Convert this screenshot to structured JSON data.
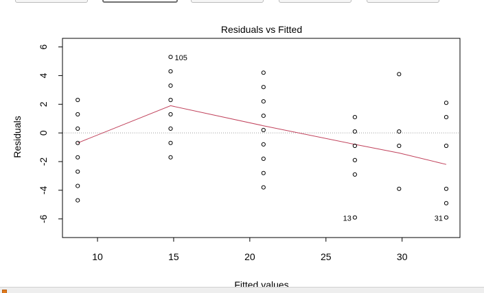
{
  "toolbar": {
    "buttons": [
      "",
      "",
      "",
      "",
      ""
    ],
    "active_index": 1
  },
  "status": {
    "text": ""
  },
  "chart_data": {
    "type": "scatter",
    "title": "Residuals vs Fitted",
    "xlabel": "Fitted values",
    "ylabel": "Residuals",
    "xlim": [
      7.7,
      33.8
    ],
    "ylim": [
      -7.3,
      6.6
    ],
    "xticks": [
      10,
      15,
      20,
      25,
      30
    ],
    "yticks": [
      -6,
      -4,
      -2,
      0,
      2,
      4,
      6
    ],
    "reference_line_y": 0,
    "colors": {
      "points": "#000000",
      "smooth": "#c0405a",
      "zero_line": "#9a9a9a"
    },
    "points": [
      {
        "x": 8.7,
        "y": 2.3
      },
      {
        "x": 8.7,
        "y": 1.3
      },
      {
        "x": 8.7,
        "y": 0.3
      },
      {
        "x": 8.7,
        "y": -0.7
      },
      {
        "x": 8.7,
        "y": -1.7
      },
      {
        "x": 8.7,
        "y": -2.7
      },
      {
        "x": 8.7,
        "y": -3.7
      },
      {
        "x": 8.7,
        "y": -4.7
      },
      {
        "x": 14.8,
        "y": 5.3,
        "label": "105"
      },
      {
        "x": 14.8,
        "y": 4.3
      },
      {
        "x": 14.8,
        "y": 3.3
      },
      {
        "x": 14.8,
        "y": 2.3
      },
      {
        "x": 14.8,
        "y": 1.3
      },
      {
        "x": 14.8,
        "y": 0.3
      },
      {
        "x": 14.8,
        "y": -0.7
      },
      {
        "x": 14.8,
        "y": -1.7
      },
      {
        "x": 20.9,
        "y": 4.2
      },
      {
        "x": 20.9,
        "y": 3.2
      },
      {
        "x": 20.9,
        "y": 2.2
      },
      {
        "x": 20.9,
        "y": 1.2
      },
      {
        "x": 20.9,
        "y": 0.2
      },
      {
        "x": 20.9,
        "y": -0.8
      },
      {
        "x": 20.9,
        "y": -1.8
      },
      {
        "x": 20.9,
        "y": -2.8
      },
      {
        "x": 20.9,
        "y": -3.8
      },
      {
        "x": 26.9,
        "y": 1.1
      },
      {
        "x": 26.9,
        "y": 0.1
      },
      {
        "x": 26.9,
        "y": -0.9
      },
      {
        "x": 26.9,
        "y": -1.9
      },
      {
        "x": 26.9,
        "y": -2.9
      },
      {
        "x": 26.9,
        "y": -5.9,
        "label": "13"
      },
      {
        "x": 29.8,
        "y": 4.1
      },
      {
        "x": 29.8,
        "y": 0.1
      },
      {
        "x": 29.8,
        "y": -0.9
      },
      {
        "x": 29.8,
        "y": -3.9
      },
      {
        "x": 32.9,
        "y": 2.1
      },
      {
        "x": 32.9,
        "y": 1.1
      },
      {
        "x": 32.9,
        "y": -0.9
      },
      {
        "x": 32.9,
        "y": -3.9
      },
      {
        "x": 32.9,
        "y": -4.9
      },
      {
        "x": 32.9,
        "y": -5.9,
        "label": "31"
      }
    ],
    "smooth_line": [
      {
        "x": 8.7,
        "y": -0.7
      },
      {
        "x": 14.8,
        "y": 1.9
      },
      {
        "x": 20.9,
        "y": 0.5
      },
      {
        "x": 26.9,
        "y": -0.8
      },
      {
        "x": 29.8,
        "y": -1.4
      },
      {
        "x": 32.9,
        "y": -2.2
      }
    ]
  }
}
